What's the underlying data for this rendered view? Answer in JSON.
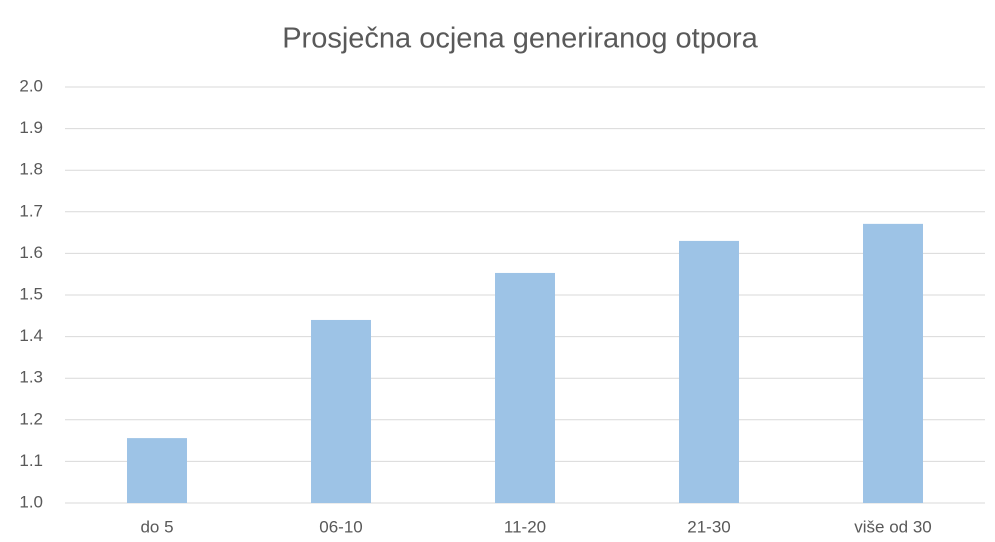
{
  "chart_data": {
    "type": "bar",
    "title": "Prosječna ocjena generiranog otpora",
    "categories": [
      "do 5",
      "06-10",
      "11-20",
      "21-30",
      "više od 30"
    ],
    "values": [
      1.156,
      1.44,
      1.553,
      1.63,
      1.671
    ],
    "color": "#9dc3e6",
    "ylim": [
      1.0,
      2.0
    ],
    "yticks": [
      {
        "value": 1.0,
        "label": "1.0"
      },
      1.1,
      1.2,
      1.3,
      1.4,
      1.5,
      1.6,
      1.7,
      1.8,
      1.9,
      {
        "value": 2.0,
        "label": "2.0"
      }
    ],
    "grid": true
  }
}
